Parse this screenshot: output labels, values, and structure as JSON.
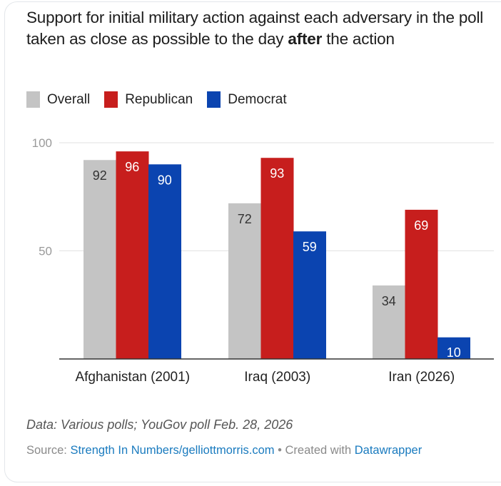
{
  "title": {
    "before_bold": "Support for initial military action against each adversary in the poll taken as close as possible to the day ",
    "bold": "after",
    "after_bold": " the action"
  },
  "legend": [
    {
      "label": "Overall",
      "color": "#c4c4c4"
    },
    {
      "label": "Republican",
      "color": "#c71e1d"
    },
    {
      "label": "Democrat",
      "color": "#0b44b0"
    }
  ],
  "chart_data": {
    "type": "bar",
    "title": "Support for initial military action against each adversary in the poll taken as close as possible to the day after the action",
    "categories": [
      "Afghanistan (2001)",
      "Iraq (2003)",
      "Iran (2026)"
    ],
    "series": [
      {
        "name": "Overall",
        "color": "#c4c4c4",
        "label_color": "#333333",
        "values": [
          92,
          72,
          34
        ]
      },
      {
        "name": "Republican",
        "color": "#c71e1d",
        "label_color": "#ffffff",
        "values": [
          96,
          93,
          69
        ]
      },
      {
        "name": "Democrat",
        "color": "#0b44b0",
        "label_color": "#ffffff",
        "values": [
          90,
          59,
          10
        ]
      }
    ],
    "yticks": [
      50,
      100
    ],
    "ylim": [
      0,
      100
    ],
    "xlabel": "",
    "ylabel": "",
    "grid": true,
    "legend_position": "top-left"
  },
  "notes": "Data: Various polls; YouGov poll Feb. 28, 2026",
  "source": {
    "prefix": "Source: ",
    "link": "Strength In Numbers/gelliottmorris.com",
    "separator": " • Created with ",
    "tool": "Datawrapper"
  }
}
